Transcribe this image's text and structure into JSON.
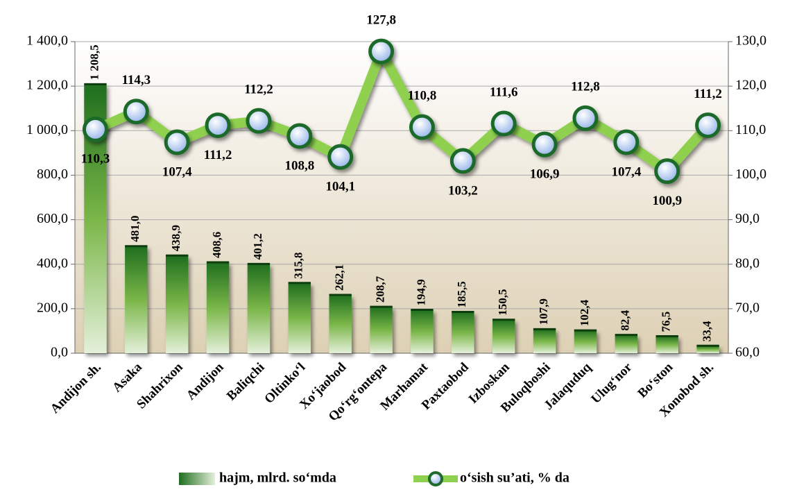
{
  "chart_data": {
    "type": "bar",
    "categories": [
      "Andijon sh.",
      "Asaka",
      "Shahrixon",
      "Andijon",
      "Baliqchi",
      "Oltinko‘l",
      "Xo‘jaobod",
      "Qo‘rg‘ontepa",
      "Marhamat",
      "Paxtaobod",
      "Izboskan",
      "Buloqboshi",
      "Jalaquduq",
      "Ulug‘nor",
      "Bo‘ston",
      "Xonobod sh."
    ],
    "series": [
      {
        "name": "hajm, mlrd. so‘mda",
        "type": "bar",
        "color": "#1f7a1f",
        "values": [
          1208.5,
          481.0,
          438.9,
          408.6,
          401.2,
          315.8,
          262.1,
          208.7,
          194.9,
          185.5,
          150.5,
          107.9,
          102.4,
          82.4,
          76.5,
          33.4
        ],
        "value_labels": [
          "1 208,5",
          "481,0",
          "438,9",
          "408,6",
          "401,2",
          "315,8",
          "262,1",
          "208,7",
          "194,9",
          "185,5",
          "150,5",
          "107,9",
          "102,4",
          "82,4",
          "76,5",
          "33,4"
        ]
      },
      {
        "name": "o‘sish su’ati, % da",
        "type": "line",
        "axis": "y2",
        "color": "#8fd14f",
        "values": [
          110.3,
          114.3,
          107.4,
          111.2,
          112.2,
          108.8,
          104.1,
          127.8,
          110.8,
          103.2,
          111.6,
          106.9,
          112.8,
          107.4,
          100.9,
          111.2
        ],
        "value_labels": [
          "110,3",
          "114,3",
          "107,4",
          "111,2",
          "112,2",
          "108,8",
          "104,1",
          "127,8",
          "110,8",
          "103,2",
          "111,6",
          "106,9",
          "112,8",
          "107,4",
          "100,9",
          "111,2"
        ]
      }
    ],
    "ylim": [
      0,
      1400
    ],
    "yticks": [
      {
        "value": 0,
        "label": "0,0"
      },
      {
        "value": 200,
        "label": "200,0"
      },
      {
        "value": 400,
        "label": "400,0"
      },
      {
        "value": 600,
        "label": "600,0"
      },
      {
        "value": 800,
        "label": "800,0"
      },
      {
        "value": 1000,
        "label": "1 000,0"
      },
      {
        "value": 1200,
        "label": "1 200,0"
      },
      {
        "value": 1400,
        "label": "1 400,0"
      }
    ],
    "y2lim": [
      60,
      130
    ],
    "y2ticks": [
      {
        "value": 60,
        "label": "60,0"
      },
      {
        "value": 70,
        "label": "70,0"
      },
      {
        "value": 80,
        "label": "80,0"
      },
      {
        "value": 90,
        "label": "90,0"
      },
      {
        "value": 100,
        "label": "100,0"
      },
      {
        "value": 110,
        "label": "110,0"
      },
      {
        "value": 120,
        "label": "120,0"
      },
      {
        "value": 130,
        "label": "130,0"
      }
    ],
    "grid": true,
    "legend": "bottom"
  }
}
